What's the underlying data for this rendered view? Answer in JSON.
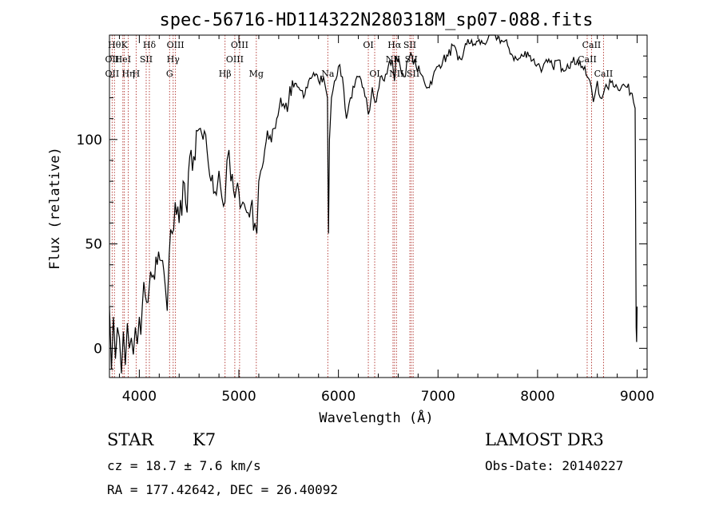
{
  "chart_data": {
    "type": "line",
    "title": "spec-56716-HD114322N280318M_sp07-088.fits",
    "xlabel": "Wavelength (Å)",
    "ylabel": "Flux (relative)",
    "xlim": [
      3700,
      9100
    ],
    "ylim": [
      -14,
      150
    ],
    "xticks": [
      {
        "value": 4000,
        "label": "4000"
      },
      {
        "value": 5000,
        "label": "5000"
      },
      {
        "value": 6000,
        "label": "6000"
      },
      {
        "value": 7000,
        "label": "7000"
      },
      {
        "value": 8000,
        "label": "8000"
      },
      {
        "value": 9000,
        "label": "9000"
      }
    ],
    "yticks": [
      {
        "value": 0,
        "label": "0"
      },
      {
        "value": 50,
        "label": "50"
      },
      {
        "value": 100,
        "label": "100"
      }
    ],
    "x_minor_step": 200,
    "y_minor_step": 10,
    "spectrum": {
      "name": "flux",
      "x": [
        3700,
        3720,
        3740,
        3760,
        3780,
        3800,
        3820,
        3840,
        3860,
        3880,
        3900,
        3920,
        3940,
        3960,
        3980,
        4000,
        4030,
        4060,
        4100,
        4140,
        4180,
        4220,
        4260,
        4280,
        4300,
        4330,
        4360,
        4400,
        4440,
        4480,
        4520,
        4560,
        4600,
        4640,
        4680,
        4720,
        4760,
        4800,
        4830,
        4860,
        4880,
        4900,
        4920,
        4960,
        5000,
        5040,
        5080,
        5120,
        5160,
        5180,
        5200,
        5220,
        5260,
        5300,
        5340,
        5380,
        5420,
        5460,
        5500,
        5550,
        5600,
        5650,
        5700,
        5750,
        5800,
        5850,
        5870,
        5890,
        5895,
        5900,
        5910,
        5930,
        5960,
        6000,
        6040,
        6080,
        6120,
        6160,
        6200,
        6240,
        6280,
        6300,
        6340,
        6380,
        6420,
        6460,
        6500,
        6540,
        6563,
        6580,
        6620,
        6660,
        6700,
        6740,
        6780,
        6820,
        6860,
        6900,
        6950,
        7000,
        7050,
        7100,
        7150,
        7200,
        7250,
        7300,
        7350,
        7400,
        7450,
        7500,
        7550,
        7600,
        7650,
        7700,
        7750,
        7800,
        7850,
        7900,
        7950,
        8000,
        8050,
        8100,
        8150,
        8200,
        8250,
        8300,
        8350,
        8400,
        8450,
        8500,
        8540,
        8560,
        8600,
        8630,
        8662,
        8700,
        8750,
        8800,
        8850,
        8900,
        8950,
        8980,
        8990,
        8995,
        9000
      ],
      "y": [
        20,
        -10,
        15,
        -5,
        10,
        5,
        -12,
        8,
        -8,
        12,
        0,
        5,
        -3,
        10,
        2,
        15,
        20,
        25,
        30,
        35,
        40,
        42,
        30,
        18,
        45,
        55,
        70,
        60,
        80,
        65,
        95,
        90,
        105,
        100,
        95,
        80,
        75,
        85,
        72,
        70,
        90,
        95,
        80,
        72,
        75,
        70,
        65,
        68,
        60,
        55,
        80,
        85,
        95,
        100,
        105,
        110,
        120,
        115,
        118,
        125,
        125,
        120,
        128,
        132,
        128,
        130,
        125,
        120,
        80,
        55,
        100,
        120,
        128,
        135,
        130,
        110,
        120,
        125,
        130,
        125,
        120,
        112,
        125,
        118,
        130,
        128,
        135,
        138,
        128,
        140,
        135,
        130,
        138,
        140,
        135,
        132,
        128,
        125,
        130,
        135,
        138,
        140,
        145,
        138,
        140,
        148,
        145,
        147,
        146,
        148,
        150,
        149,
        147,
        145,
        140,
        138,
        140,
        142,
        138,
        136,
        134,
        137,
        135,
        138,
        134,
        136,
        137,
        138,
        135,
        130,
        125,
        118,
        128,
        120,
        122,
        125,
        128,
        125,
        126,
        125,
        122,
        115,
        10,
        3,
        20
      ]
    },
    "lines_top": [
      {
        "x": 3750,
        "label": "Hθ"
      },
      {
        "x": 3850,
        "label": "K"
      },
      {
        "x": 4101,
        "label": "Hδ"
      },
      {
        "x": 4363,
        "label": "OIII"
      },
      {
        "x": 5007,
        "label": "OIII"
      },
      {
        "x": 6300,
        "label": "OI"
      },
      {
        "x": 6563,
        "label": "Hα"
      },
      {
        "x": 6717,
        "label": "SII"
      },
      {
        "x": 8542,
        "label": "CaII"
      }
    ],
    "lines_mid": [
      {
        "x": 3727,
        "label": "OII"
      },
      {
        "x": 3835,
        "label": "HeI"
      },
      {
        "x": 4069,
        "label": "SII"
      },
      {
        "x": 4340,
        "label": "Hγ"
      },
      {
        "x": 4959,
        "label": "OIII"
      },
      {
        "x": 6548,
        "label": "NII"
      },
      {
        "x": 6731,
        "label": "SII"
      },
      {
        "x": 8498,
        "label": "CaII"
      }
    ],
    "lines_low": [
      {
        "x": 3727,
        "label": "OII"
      },
      {
        "x": 3889,
        "label": "Hη"
      },
      {
        "x": 3968,
        "label": "H"
      },
      {
        "x": 4304,
        "label": "G"
      },
      {
        "x": 4861,
        "label": "Hβ"
      },
      {
        "x": 5175,
        "label": "Mg"
      },
      {
        "x": 5893,
        "label": "Na"
      },
      {
        "x": 6364,
        "label": "OI"
      },
      {
        "x": 6583,
        "label": "NII"
      },
      {
        "x": 6750,
        "label": "SII"
      },
      {
        "x": 8662,
        "label": "CaII"
      }
    ],
    "colors": {
      "spectrum": "#000000",
      "lines": "#b0302a",
      "axes": "#000000"
    }
  },
  "info": {
    "class": "STAR",
    "subclass": "K7",
    "survey": "LAMOST DR3",
    "cz": "cz = 18.7 ± 7.6 km/s",
    "obsdate": "Obs-Date: 20140227",
    "radec": "RA = 177.42642, DEC =  26.40092"
  }
}
